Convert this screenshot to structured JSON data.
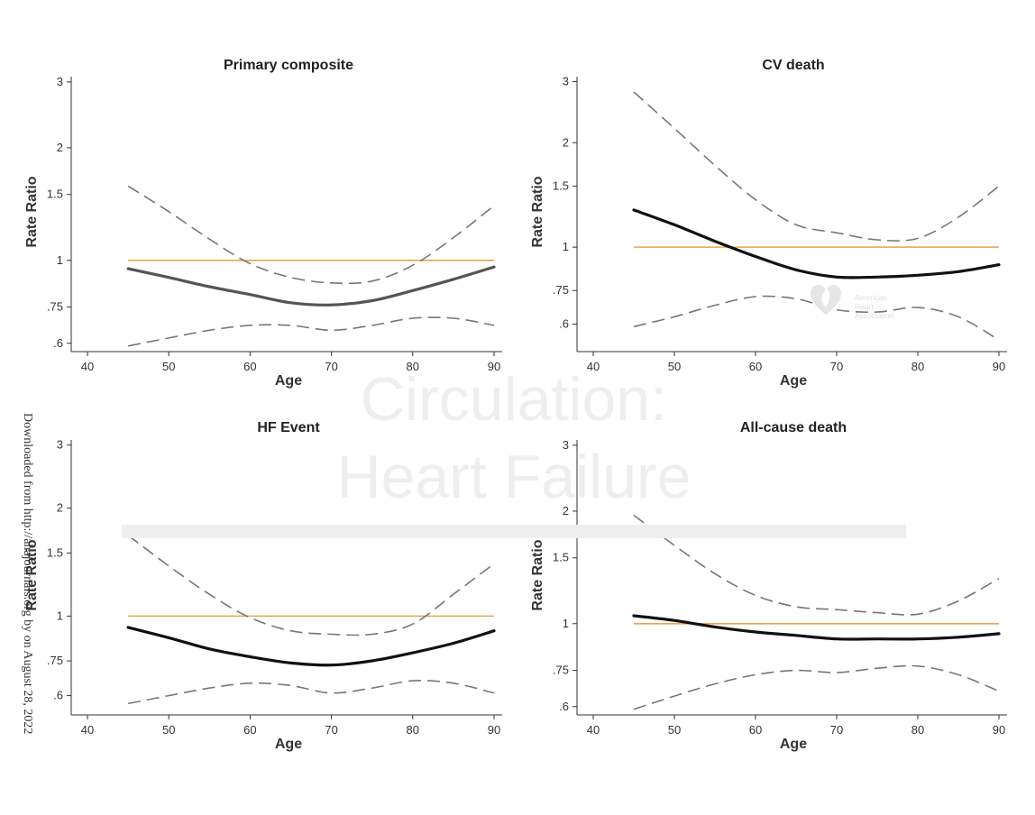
{
  "watermark": {
    "line1": "Circulation:",
    "line2": "Heart Failure",
    "download_note": "Downloaded from http://ahajournals.org by on August 28, 2022",
    "logo_text": [
      "American",
      "Heart",
      "Association."
    ]
  },
  "chart_data": [
    {
      "type": "line",
      "title": "Primary composite",
      "xlabel": "Age",
      "ylabel": "Rate Ratio",
      "y_scale": "log",
      "xlim": [
        38,
        91
      ],
      "ylim": [
        0.57,
        3.1
      ],
      "x_ticks": [
        40,
        50,
        60,
        70,
        80,
        90
      ],
      "y_ticks": [
        0.6,
        0.75,
        1,
        1.5,
        2,
        3
      ],
      "y_tick_labels": [
        ".6",
        ".75",
        "1",
        "1.5",
        "2",
        "3"
      ],
      "reference_y": 1,
      "series": [
        {
          "role": "estimate",
          "x": [
            45,
            50,
            55,
            60,
            65,
            70,
            75,
            80,
            85,
            90
          ],
          "y": [
            0.95,
            0.9,
            0.85,
            0.81,
            0.77,
            0.76,
            0.78,
            0.83,
            0.89,
            0.96
          ]
        },
        {
          "role": "ci_upper",
          "x": [
            45,
            50,
            55,
            60,
            65,
            70,
            75,
            80,
            85,
            90
          ],
          "y": [
            1.58,
            1.35,
            1.14,
            0.98,
            0.9,
            0.87,
            0.88,
            0.97,
            1.15,
            1.4
          ]
        },
        {
          "role": "ci_lower",
          "x": [
            45,
            50,
            55,
            60,
            65,
            70,
            75,
            80,
            85,
            90
          ],
          "y": [
            0.59,
            0.62,
            0.65,
            0.67,
            0.67,
            0.65,
            0.67,
            0.7,
            0.7,
            0.67
          ]
        }
      ]
    },
    {
      "type": "line",
      "title": "CV death",
      "xlabel": "Age",
      "ylabel": "Rate Ratio",
      "y_scale": "log",
      "xlim": [
        38,
        91
      ],
      "ylim": [
        0.5,
        3.1
      ],
      "x_ticks": [
        40,
        50,
        60,
        70,
        80,
        90
      ],
      "y_ticks": [
        0.6,
        0.75,
        1,
        1.5,
        2,
        3
      ],
      "y_tick_labels": [
        ".6",
        ".75",
        "1",
        "1.5",
        "2",
        "3"
      ],
      "reference_y": 1,
      "series": [
        {
          "role": "estimate",
          "x": [
            45,
            50,
            55,
            60,
            65,
            70,
            75,
            80,
            85,
            90
          ],
          "y": [
            1.28,
            1.16,
            1.04,
            0.94,
            0.86,
            0.82,
            0.82,
            0.83,
            0.85,
            0.89
          ]
        },
        {
          "role": "ci_upper",
          "x": [
            45,
            50,
            55,
            60,
            65,
            70,
            75,
            80,
            85,
            90
          ],
          "y": [
            2.8,
            2.2,
            1.72,
            1.37,
            1.16,
            1.1,
            1.05,
            1.06,
            1.22,
            1.5
          ]
        },
        {
          "role": "ci_lower",
          "x": [
            45,
            50,
            55,
            60,
            65,
            70,
            75,
            80,
            85,
            90
          ],
          "y": [
            0.59,
            0.63,
            0.68,
            0.72,
            0.71,
            0.66,
            0.65,
            0.67,
            0.63,
            0.54
          ]
        }
      ]
    },
    {
      "type": "line",
      "title": "HF Event",
      "xlabel": "Age",
      "ylabel": "Rate Ratio",
      "y_scale": "log",
      "xlim": [
        38,
        91
      ],
      "ylim": [
        0.53,
        3.1
      ],
      "x_ticks": [
        40,
        50,
        60,
        70,
        80,
        90
      ],
      "y_ticks": [
        0.6,
        0.75,
        1,
        1.5,
        2,
        3
      ],
      "y_tick_labels": [
        ".6",
        ".75",
        "1",
        "1.5",
        "2",
        "3"
      ],
      "reference_y": 1,
      "series": [
        {
          "role": "estimate",
          "x": [
            45,
            50,
            55,
            60,
            65,
            70,
            75,
            80,
            85,
            90
          ],
          "y": [
            0.93,
            0.87,
            0.81,
            0.77,
            0.74,
            0.73,
            0.75,
            0.79,
            0.84,
            0.91
          ]
        },
        {
          "role": "ci_upper",
          "x": [
            45,
            50,
            55,
            60,
            65,
            70,
            75,
            80,
            85,
            90
          ],
          "y": [
            1.68,
            1.38,
            1.15,
            0.99,
            0.91,
            0.89,
            0.89,
            0.95,
            1.15,
            1.4
          ]
        },
        {
          "role": "ci_lower",
          "x": [
            45,
            50,
            55,
            60,
            65,
            70,
            75,
            80,
            85,
            90
          ],
          "y": [
            0.57,
            0.6,
            0.63,
            0.65,
            0.64,
            0.61,
            0.63,
            0.66,
            0.65,
            0.61
          ]
        }
      ]
    },
    {
      "type": "line",
      "title": "All-cause death",
      "xlabel": "Age",
      "ylabel": "Rate Ratio",
      "y_scale": "log",
      "xlim": [
        38,
        91
      ],
      "ylim": [
        0.57,
        3.1
      ],
      "x_ticks": [
        40,
        50,
        60,
        70,
        80,
        90
      ],
      "y_ticks": [
        0.6,
        0.75,
        1,
        1.5,
        2,
        3
      ],
      "y_tick_labels": [
        ".6",
        ".75",
        "1",
        "1.5",
        "2",
        "3"
      ],
      "reference_y": 1,
      "series": [
        {
          "role": "estimate",
          "x": [
            45,
            50,
            55,
            60,
            65,
            70,
            75,
            80,
            85,
            90
          ],
          "y": [
            1.05,
            1.02,
            0.98,
            0.95,
            0.93,
            0.91,
            0.91,
            0.91,
            0.92,
            0.94
          ]
        },
        {
          "role": "ci_upper",
          "x": [
            45,
            50,
            55,
            60,
            65,
            70,
            75,
            80,
            85,
            90
          ],
          "y": [
            1.95,
            1.62,
            1.36,
            1.19,
            1.11,
            1.09,
            1.07,
            1.06,
            1.15,
            1.32
          ]
        },
        {
          "role": "ci_lower",
          "x": [
            45,
            50,
            55,
            60,
            65,
            70,
            75,
            80,
            85,
            90
          ],
          "y": [
            0.59,
            0.64,
            0.69,
            0.73,
            0.75,
            0.74,
            0.76,
            0.77,
            0.73,
            0.66
          ]
        }
      ]
    }
  ]
}
